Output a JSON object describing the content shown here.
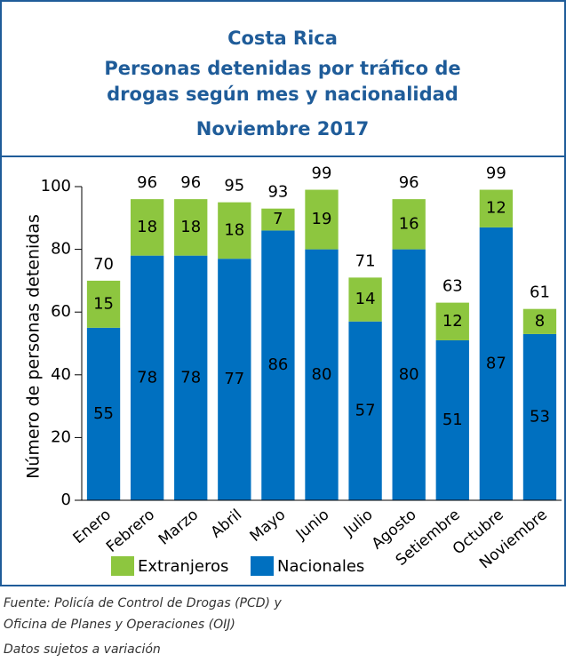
{
  "title_lines": [
    "Costa Rica",
    "Personas detenidas  por tráfico de",
    "drogas según mes y nacionalidad",
    "Noviembre 2017"
  ],
  "chart_data": {
    "type": "bar",
    "stacked": true,
    "ylabel": "Número de personas detenidas",
    "categories": [
      "Enero",
      "Febrero",
      "Marzo",
      "Abril",
      "Mayo",
      "Junio",
      "Julio",
      "Agosto",
      "Setiembre",
      "Octubre",
      "Noviembre"
    ],
    "series": [
      {
        "name": "Nacionales",
        "color": "#0070c0",
        "values": [
          55,
          78,
          78,
          77,
          86,
          80,
          57,
          80,
          51,
          87,
          53
        ]
      },
      {
        "name": "Extranjeros",
        "color": "#8dc63f",
        "values": [
          15,
          18,
          18,
          18,
          7,
          19,
          14,
          16,
          12,
          12,
          8
        ]
      }
    ],
    "totals": [
      70,
      96,
      96,
      95,
      93,
      99,
      71,
      96,
      63,
      99,
      61
    ],
    "ylim": [
      0,
      100
    ],
    "yticks": [
      0,
      20,
      40,
      60,
      80,
      100
    ]
  },
  "footer_lines": [
    "Fuente: Policía de Control de Drogas (PCD) y",
    "Oficina de Planes y Operaciones (OIJ)",
    "Datos sujetos a variación"
  ]
}
